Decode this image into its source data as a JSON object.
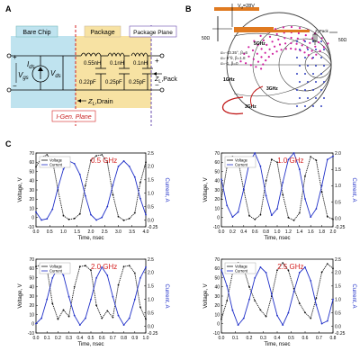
{
  "panel_a": {
    "letter": "A",
    "bare_chip_label": "Bare Chip",
    "package_label": "Package",
    "package_plane_label": "Package Plane",
    "igen_plane_label": "I-Gen. Plane",
    "vgs_label": "V",
    "vgs_sub": "gs",
    "ids_label": "I",
    "ids_sub": "ds",
    "vds_label": "V",
    "vds_sub": "ds",
    "zl_drain_label": "Z",
    "zl_drain_sub": "L",
    "zl_drain_suffix": ",Drain",
    "zl_pack_label": "Z",
    "zl_pack_sub": "L",
    "zl_pack_suffix": ",Pack",
    "inductors": [
      "0.55nH",
      "0.1nH",
      "0.1nH"
    ],
    "capacitors": [
      "0.22pF",
      "0.25pF",
      "0.25pF"
    ],
    "colors": {
      "bare_chip_bg": "#bfe3ef",
      "package_bg": "#f7e2a3",
      "package_plane": "#6a4caf",
      "igen_plane": "#d42020",
      "igen_text": "#c81e1e",
      "wire": "#000000"
    }
  },
  "panel_b": {
    "letter": "B",
    "vdd_label": "V",
    "vdd_sub": "d",
    "vdd_value": "=28V",
    "ohm50_left": "50Ω",
    "ohm50_right": "50Ω",
    "zl_text": "Z",
    "zl_sub": "L",
    "zl_suffix": "Pack",
    "freq_labels": [
      "1GHz",
      "3GHz",
      "3GHz",
      "5GHz"
    ],
    "legend_lines": [
      "α=-43.35°, β=6",
      "α=-9°θ, β=1.8",
      "α=-1, β=0"
    ],
    "colors": {
      "circle": "#333333",
      "dots_pink": "#d020a0",
      "dots_blue": "#3040c0",
      "arrow": "#c01818",
      "tline": "#e07a20"
    }
  },
  "panel_c": {
    "letter": "C",
    "legend_voltage": "Voltage",
    "legend_current": "Current",
    "ylabel_left": "Voltage, V",
    "ylabel_right": "Current, A",
    "xlabel": "Time, nsec",
    "colors": {
      "voltage": "#111111",
      "current": "#2030c8",
      "freq": "#d42020"
    }
  },
  "chart_data": [
    {
      "type": "line",
      "title": "0.5 GHz",
      "xlabel": "Time, nsec",
      "ylabel": "Voltage, V",
      "ylabel2": "Current, A",
      "xlim": [
        0,
        4.0
      ],
      "ylim": [
        -10,
        70
      ],
      "ylim2": [
        -0.25,
        2.5
      ],
      "x_ticks": [
        "0.0",
        "0.5",
        "1.0",
        "1.5",
        "2.0",
        "2.5",
        "3.0",
        "3.5",
        "4.0"
      ],
      "y_ticks": [
        "-10",
        "0",
        "10",
        "20",
        "30",
        "40",
        "50",
        "60",
        "70"
      ],
      "y2_ticks": [
        "-0.25",
        "0.0",
        "0.5",
        "1.0",
        "1.5",
        "2.0",
        "2.5"
      ],
      "series": [
        {
          "name": "Voltage",
          "x": [
            0,
            0.2,
            0.4,
            0.6,
            0.8,
            1.0,
            1.2,
            1.4,
            1.6,
            1.8,
            2.0,
            2.2,
            2.4,
            2.6,
            2.8,
            3.0,
            3.2,
            3.4,
            3.6,
            3.8,
            4.0
          ],
          "values": [
            55,
            65,
            68,
            62,
            30,
            2,
            -2,
            -1,
            4,
            35,
            62,
            67,
            68,
            60,
            25,
            1,
            -3,
            -1,
            5,
            38,
            60
          ]
        },
        {
          "name": "Current",
          "x": [
            0,
            0.2,
            0.4,
            0.6,
            0.8,
            1.0,
            1.2,
            1.4,
            1.6,
            1.8,
            2.0,
            2.2,
            2.4,
            2.6,
            2.8,
            3.0,
            3.2,
            3.4,
            3.6,
            3.8,
            4.0
          ],
          "values": [
            0.3,
            0.0,
            0.05,
            0.4,
            1.2,
            1.9,
            2.2,
            2.1,
            1.7,
            0.9,
            0.2,
            0.0,
            0.1,
            0.5,
            1.3,
            2.0,
            2.2,
            2.0,
            1.6,
            0.8,
            0.2
          ]
        }
      ]
    },
    {
      "type": "line",
      "title": "1.0 GHz",
      "xlabel": "Time, nsec",
      "ylabel": "Voltage, V",
      "ylabel2": "Current, A",
      "xlim": [
        0,
        2.0
      ],
      "ylim": [
        -10,
        70
      ],
      "ylim2": [
        -0.25,
        2.0
      ],
      "x_ticks": [
        "0.0",
        "0.2",
        "0.4",
        "0.6",
        "0.8",
        "1.0",
        "1.2",
        "1.4",
        "1.6",
        "1.8",
        "2.0"
      ],
      "y_ticks": [
        "-10",
        "0",
        "10",
        "20",
        "30",
        "40",
        "50",
        "60",
        "70"
      ],
      "y2_ticks": [
        "-0.25",
        "0.0",
        "0.5",
        "1.0",
        "1.5",
        "2.0"
      ],
      "series": [
        {
          "name": "Voltage",
          "x": [
            0,
            0.1,
            0.2,
            0.3,
            0.4,
            0.5,
            0.6,
            0.7,
            0.8,
            0.9,
            1.0,
            1.1,
            1.2,
            1.3,
            1.4,
            1.5,
            1.6,
            1.7,
            1.8,
            1.9,
            2.0
          ],
          "values": [
            20,
            55,
            66,
            62,
            30,
            2,
            -2,
            3,
            40,
            63,
            60,
            25,
            0,
            -3,
            5,
            45,
            66,
            62,
            28,
            1,
            -2
          ]
        },
        {
          "name": "Current",
          "x": [
            0,
            0.1,
            0.2,
            0.3,
            0.4,
            0.5,
            0.6,
            0.7,
            0.8,
            0.9,
            1.0,
            1.1,
            1.2,
            1.3,
            1.4,
            1.5,
            1.6,
            1.7,
            1.8,
            1.9,
            2.0
          ],
          "values": [
            1.2,
            0.4,
            0.05,
            0.2,
            0.9,
            1.7,
            2.0,
            1.6,
            0.7,
            0.1,
            0.3,
            1.1,
            1.8,
            2.0,
            1.5,
            0.6,
            0.05,
            0.3,
            1.0,
            1.8,
            1.9
          ]
        }
      ]
    },
    {
      "type": "line",
      "title": "2.0 GHz",
      "xlabel": "Time, nsec",
      "ylabel": "Voltage, V",
      "ylabel2": "Current, A",
      "xlim": [
        0,
        1.0
      ],
      "ylim": [
        -10,
        70
      ],
      "ylim2": [
        -0.25,
        2.5
      ],
      "x_ticks": [
        "0.0",
        "0.1",
        "0.2",
        "0.3",
        "0.4",
        "0.5",
        "0.6",
        "0.7",
        "0.8",
        "0.9",
        "1.0"
      ],
      "y_ticks": [
        "-10",
        "0",
        "10",
        "20",
        "30",
        "40",
        "50",
        "60",
        "70"
      ],
      "y2_ticks": [
        "-0.25",
        "0.0",
        "0.5",
        "1.0",
        "1.5",
        "2.0",
        "2.5"
      ],
      "series": [
        {
          "name": "Voltage",
          "x": [
            0,
            0.05,
            0.1,
            0.15,
            0.2,
            0.25,
            0.3,
            0.35,
            0.4,
            0.45,
            0.5,
            0.55,
            0.6,
            0.65,
            0.7,
            0.75,
            0.8,
            0.85,
            0.9,
            0.95,
            1.0
          ],
          "values": [
            62,
            64,
            60,
            22,
            5,
            15,
            8,
            40,
            62,
            63,
            58,
            20,
            6,
            14,
            7,
            42,
            62,
            63,
            55,
            18,
            5
          ]
        },
        {
          "name": "Current",
          "x": [
            0,
            0.05,
            0.1,
            0.15,
            0.2,
            0.25,
            0.3,
            0.35,
            0.4,
            0.45,
            0.5,
            0.55,
            0.6,
            0.65,
            0.7,
            0.75,
            0.8,
            0.85,
            0.9,
            0.95,
            1.0
          ],
          "values": [
            0.1,
            0.3,
            1.0,
            1.8,
            2.2,
            1.9,
            1.1,
            0.4,
            0.05,
            0.3,
            1.0,
            1.8,
            2.2,
            1.9,
            1.1,
            0.4,
            0.05,
            0.3,
            1.0,
            1.8,
            2.2
          ]
        }
      ]
    },
    {
      "type": "line",
      "title": "2.5 GHz",
      "xlabel": "Time, nsec",
      "ylabel": "Voltage, V",
      "ylabel2": "Current, A",
      "xlim": [
        0,
        0.8
      ],
      "ylim": [
        -10,
        70
      ],
      "ylim2": [
        -0.25,
        2.5
      ],
      "x_ticks": [
        "0.0",
        "0.1",
        "0.2",
        "0.3",
        "0.4",
        "0.5",
        "0.6",
        "0.7",
        "0.8"
      ],
      "y_ticks": [
        "-10",
        "0",
        "10",
        "20",
        "30",
        "40",
        "50",
        "60",
        "70"
      ],
      "y2_ticks": [
        "-0.25",
        "0.0",
        "0.5",
        "1.0",
        "1.5",
        "2.0",
        "2.5"
      ],
      "series": [
        {
          "name": "Voltage",
          "x": [
            0,
            0.04,
            0.08,
            0.12,
            0.16,
            0.2,
            0.24,
            0.28,
            0.32,
            0.36,
            0.4,
            0.44,
            0.48,
            0.52,
            0.56,
            0.6,
            0.64,
            0.68,
            0.72,
            0.76,
            0.8
          ],
          "values": [
            5,
            25,
            55,
            66,
            60,
            40,
            25,
            15,
            8,
            30,
            58,
            66,
            58,
            38,
            22,
            12,
            6,
            28,
            56,
            65,
            60
          ]
        },
        {
          "name": "Current",
          "x": [
            0,
            0.04,
            0.08,
            0.12,
            0.16,
            0.2,
            0.24,
            0.28,
            0.32,
            0.36,
            0.4,
            0.44,
            0.48,
            0.52,
            0.56,
            0.6,
            0.64,
            0.68,
            0.72,
            0.76,
            0.8
          ],
          "values": [
            2.1,
            1.5,
            0.6,
            0.05,
            0.3,
            1.0,
            1.8,
            2.2,
            2.0,
            1.2,
            0.4,
            0.05,
            0.5,
            1.3,
            2.0,
            2.2,
            1.7,
            0.8,
            0.1,
            0.2,
            1.0
          ]
        }
      ]
    }
  ]
}
